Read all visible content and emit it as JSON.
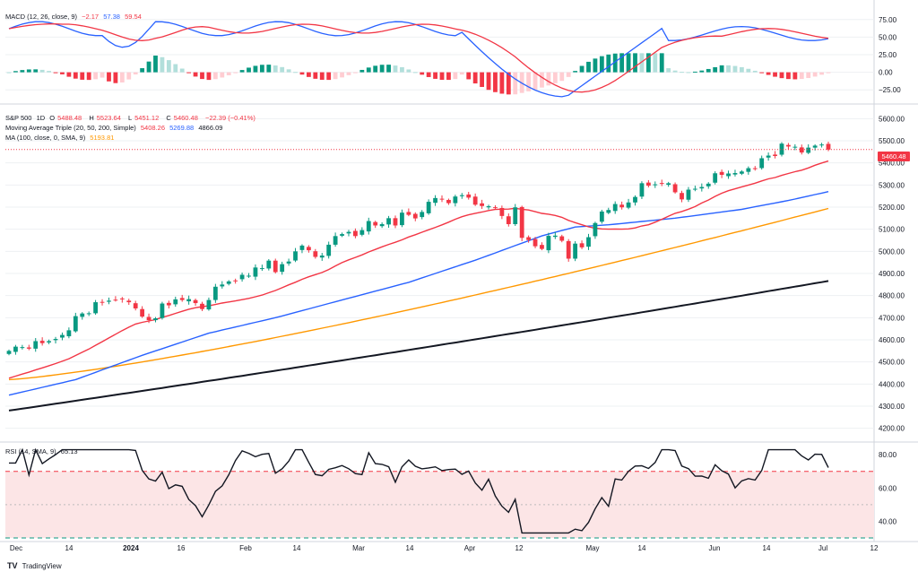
{
  "chart_data": {
    "type": "candlestick",
    "symbol": "S&P 500",
    "interval": "1D",
    "ohlc_label": {
      "o_prefix": "O",
      "o": "5488.48",
      "h_prefix": "H",
      "h": "5523.64",
      "l_prefix": "L",
      "l": "5451.12",
      "c_prefix": "C",
      "c": "5460.48",
      "change": "−22.39 (−0.41%)"
    },
    "last_price_label": "5460.48",
    "price_axis": {
      "min": 4150,
      "max": 5650,
      "ticks": [
        "5600.00",
        "5500.00",
        "5400.00",
        "5300.00",
        "5200.00",
        "5100.00",
        "5000.00",
        "4900.00",
        "4800.00",
        "4700.00",
        "4600.00",
        "4500.00",
        "4400.00",
        "4300.00",
        "4200.00"
      ]
    },
    "x_axis": {
      "ticks": [
        "Dec",
        "14",
        "2024",
        "16",
        "Feb",
        "14",
        "Mar",
        "14",
        "Apr",
        "12",
        "May",
        "14",
        "Jun",
        "14",
        "Jul",
        "12"
      ]
    },
    "candles_close": [
      4550,
      4569,
      4567,
      4560,
      4594,
      4585,
      4594,
      4604,
      4622,
      4643,
      4707,
      4719,
      4720,
      4770,
      4769,
      4777,
      4781,
      4783,
      4770,
      4742,
      4705,
      4689,
      4697,
      4764,
      4756,
      4783,
      4780,
      4784,
      4766,
      4739,
      4780,
      4840,
      4850,
      4864,
      4868,
      4894,
      4890,
      4927,
      4924,
      4958,
      4906,
      4942,
      4954,
      5000,
      5026,
      5005,
      4975,
      4981,
      5030,
      5069,
      5078,
      5088,
      5069,
      5096,
      5137,
      5117,
      5123,
      5150,
      5117,
      5175,
      5165,
      5149,
      5178,
      5224,
      5241,
      5234,
      5218,
      5248,
      5254,
      5243,
      5211,
      5205,
      5204,
      5199,
      5160,
      5123,
      5199,
      5061,
      5051,
      5023,
      5011,
      5070,
      5071,
      5048,
      4967,
      5035,
      5018,
      5064,
      5128,
      5180,
      5187,
      5214,
      5199,
      5221,
      5246,
      5308,
      5297,
      5303,
      5307,
      5308,
      5267,
      5235,
      5279,
      5283,
      5291,
      5306,
      5353,
      5346,
      5352,
      5354,
      5361,
      5376,
      5375,
      5421,
      5433,
      5431,
      5487,
      5474,
      5473,
      5447,
      5469,
      5478,
      5483,
      5460
    ],
    "series": [
      {
        "name": "Moving Average Triple (20, 50, 200, Simple)",
        "sma20": "5408.26",
        "sma50": "5269.88",
        "sma200": "4866.09"
      },
      {
        "name": "MA (100, close, 0, SMA, 9)",
        "value": "5193.81"
      }
    ],
    "macd": {
      "label": "MACD (12, 26, close, 9)",
      "hist_value": "−2.17",
      "macd_value": "57.38",
      "signal_value": "59.54",
      "axis_ticks": [
        "75.00",
        "50.00",
        "25.00",
        "0.00",
        "−25.00"
      ],
      "min": -40,
      "max": 90
    },
    "rsi": {
      "label": "RSI (14, SMA, 9)",
      "value": "65.13",
      "axis_ticks": [
        "80.00",
        "60.00",
        "40.00"
      ],
      "min": 30,
      "max": 86
    }
  },
  "colors": {
    "up": "#089981",
    "down": "#f23645",
    "sma20": "#f23645",
    "sma50": "#2962ff",
    "sma100": "#ff9800",
    "sma200": "#131722",
    "macd": "#2962ff",
    "signal": "#f23645",
    "rsi": "#131722",
    "rsi_band": "#fce5e6",
    "grid": "#eef0f3"
  },
  "branding": {
    "logo": "TV",
    "name": "TradingView"
  }
}
